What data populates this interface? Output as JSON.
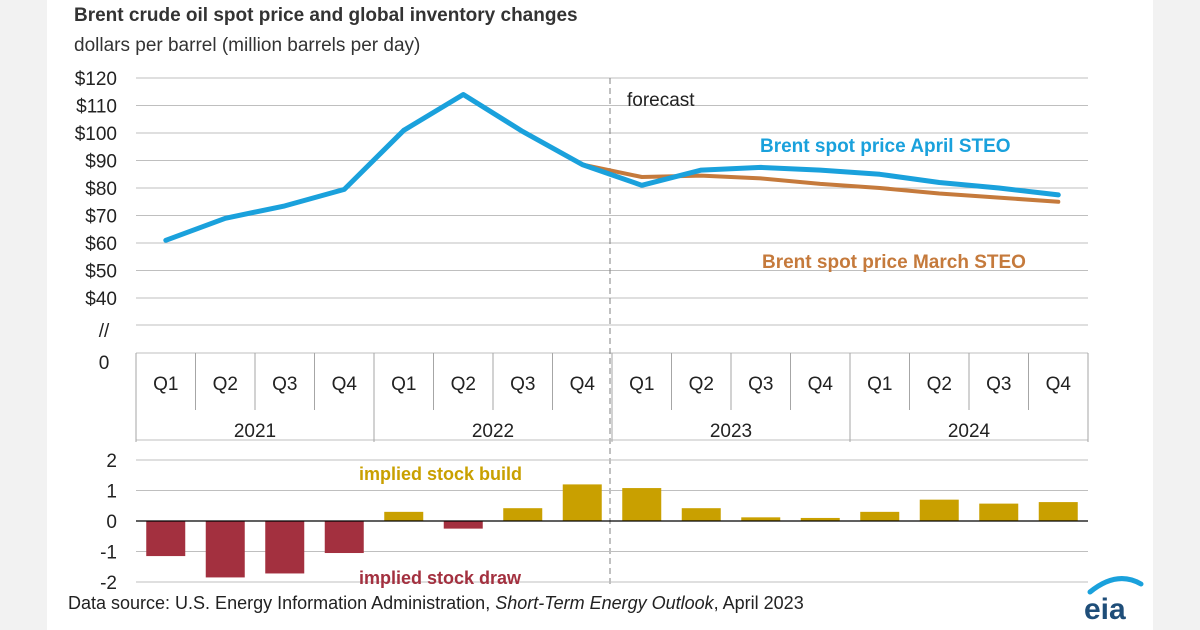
{
  "title": "Brent crude oil spot price and global inventory changes",
  "subtitle": "dollars per barrel (million barrels per day)",
  "source": {
    "prefix": "Data source: U.S. Energy Information Administration, ",
    "publication": "Short-Term Energy Outlook",
    "suffix": ", April 2023"
  },
  "logo_text": "eia",
  "colors": {
    "april": "#1aa1dc",
    "march": "#c57a3c",
    "build": "#c9a000",
    "draw": "#a3303f",
    "grid": "#bfbfbf"
  },
  "chart_data": [
    {
      "type": "line",
      "categories": [
        "Q1",
        "Q2",
        "Q3",
        "Q4",
        "Q1",
        "Q2",
        "Q3",
        "Q4",
        "Q1",
        "Q2",
        "Q3",
        "Q4",
        "Q1",
        "Q2",
        "Q3",
        "Q4"
      ],
      "groups": [
        "2021",
        "2022",
        "2023",
        "2024"
      ],
      "y_ticks": [
        "$120",
        "$110",
        "$100",
        "$90",
        "$80",
        "$70",
        "$60",
        "$50",
        "$40",
        "//",
        "0"
      ],
      "ylim": [
        40,
        120
      ],
      "forecast_label": "forecast",
      "forecast_start_index": 8,
      "series": [
        {
          "name": "Brent spot price April STEO",
          "values": [
            61,
            69,
            73.5,
            79.5,
            101,
            114,
            100.5,
            88.5,
            81,
            86.5,
            87.5,
            86.5,
            85,
            82,
            80,
            77.5
          ]
        },
        {
          "name": "Brent spot price March STEO",
          "values": [
            null,
            null,
            null,
            null,
            null,
            null,
            null,
            88.5,
            84,
            84.5,
            83.5,
            81.5,
            80,
            78,
            76.5,
            75
          ]
        }
      ],
      "grid": true
    },
    {
      "type": "bar",
      "categories": [
        "Q1",
        "Q2",
        "Q3",
        "Q4",
        "Q1",
        "Q2",
        "Q3",
        "Q4",
        "Q1",
        "Q2",
        "Q3",
        "Q4",
        "Q1",
        "Q2",
        "Q3",
        "Q4"
      ],
      "values": [
        -1.15,
        -1.85,
        -1.72,
        -1.05,
        0.3,
        -0.25,
        0.42,
        1.2,
        1.08,
        0.42,
        0.12,
        0.1,
        0.3,
        0.7,
        0.57,
        0.62
      ],
      "y_ticks": [
        "2",
        "1",
        "0",
        "-1",
        "-2"
      ],
      "ylim": [
        -2,
        2
      ],
      "annotations": [
        "implied stock  build",
        "implied stock draw"
      ],
      "grid": true
    }
  ]
}
